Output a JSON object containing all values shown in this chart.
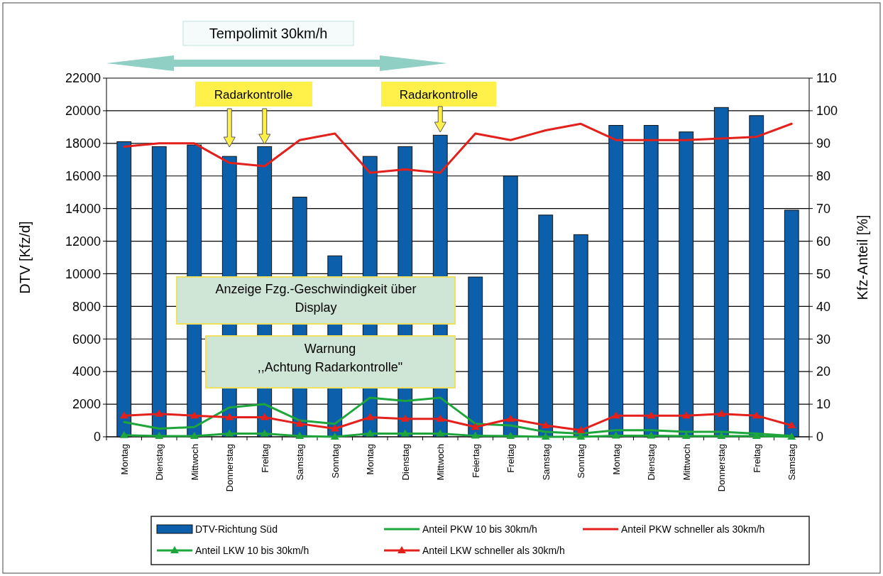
{
  "chart_data": {
    "type": "bar",
    "ylabel": "DTV [Kfz/d]",
    "y2label": "Kfz-Anteil [%]",
    "categories": [
      "Montag",
      "Dienstag",
      "Mittwoch",
      "Donnerstag",
      "Freitag",
      "Samstag",
      "Sonntag",
      "Montag",
      "Dienstag",
      "Mittwoch",
      "Feiertag",
      "Freitag",
      "Samstag",
      "Sonntag",
      "Montag",
      "Dienstag",
      "Mittwoch",
      "Donnerstag",
      "Freitag",
      "Samstag"
    ],
    "series": [
      {
        "name": "DTV-Richtung Süd",
        "color": "#0b5fab",
        "values": [
          18100,
          17800,
          17900,
          17200,
          17800,
          14700,
          11100,
          17200,
          17800,
          18500,
          9800,
          16000,
          13600,
          12400,
          19100,
          19100,
          18700,
          20200,
          19700,
          13900
        ]
      },
      {
        "name": "Anteil PKW 10 bis 30km/h",
        "type": "line",
        "axis": "y2",
        "color": "#1ea63c",
        "marker": "none",
        "values": [
          4.5,
          2.5,
          3,
          9,
          10,
          5,
          4,
          12,
          11,
          12,
          4,
          3.5,
          1.5,
          1,
          2,
          2,
          1.5,
          1.5,
          1,
          0.3
        ]
      },
      {
        "name": "Anteil PKW schneller als 30km/h",
        "type": "line",
        "axis": "y2",
        "color": "#e3201b",
        "marker": "none",
        "values": [
          89,
          90,
          90,
          84,
          83,
          91,
          93,
          81,
          82,
          81,
          93,
          91,
          94,
          96,
          91,
          91,
          91,
          91.5,
          92,
          96
        ]
      },
      {
        "name": "Anteil LKW 10 bis 30km/h",
        "type": "line",
        "axis": "y2",
        "color": "#1ea63c",
        "marker": "triangle",
        "values": [
          0.5,
          0.2,
          0.2,
          1,
          1,
          0.2,
          0,
          1,
          1,
          1,
          0.3,
          0.2,
          0,
          0,
          0.3,
          0.3,
          0.2,
          0.2,
          0.2,
          0
        ]
      },
      {
        "name": "Anteil LKW schneller als 30km/h",
        "type": "line",
        "axis": "y2",
        "color": "#e3201b",
        "marker": "triangle",
        "values": [
          6.5,
          7,
          6.5,
          6,
          6,
          4,
          2.5,
          6,
          5.5,
          5.5,
          3,
          5.5,
          3.5,
          2,
          6.5,
          6.5,
          6.5,
          7,
          6.5,
          3.5
        ]
      }
    ],
    "ylim": [
      0,
      22000
    ],
    "yticks": [
      0,
      2000,
      4000,
      6000,
      8000,
      10000,
      12000,
      14000,
      16000,
      18000,
      20000,
      22000
    ],
    "y2lim": [
      0,
      110
    ],
    "y2ticks": [
      0,
      10,
      20,
      30,
      40,
      50,
      60,
      70,
      80,
      90,
      100,
      110
    ],
    "grid": "y",
    "legend": "bottom",
    "annotations": [
      "Tempolimit 30km/h",
      "Radarkontrolle",
      "Radarkontrolle",
      "Anzeige Fzg.-Geschwindigkeit über Display",
      "Warnung ,,Achtung Radarkontrolle\""
    ]
  }
}
